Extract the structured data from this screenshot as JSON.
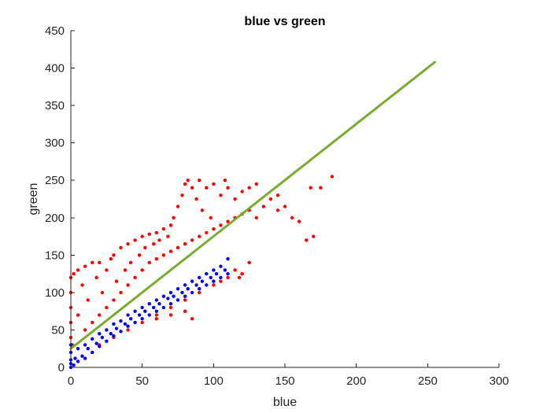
{
  "chart_data": {
    "type": "scatter",
    "title": "blue vs green",
    "xlabel": "blue",
    "ylabel": "green",
    "xlim": [
      0,
      300
    ],
    "ylim": [
      0,
      450
    ],
    "xticks": [
      0,
      50,
      100,
      150,
      200,
      250,
      300
    ],
    "yticks": [
      0,
      50,
      100,
      150,
      200,
      250,
      300,
      350,
      400,
      450
    ],
    "grid": false,
    "legend": "none",
    "series": [
      {
        "kind": "scatter",
        "color": "#ff0000",
        "points": [
          [
            0,
            40
          ],
          [
            0,
            60
          ],
          [
            0,
            80
          ],
          [
            0,
            100
          ],
          [
            0,
            120
          ],
          [
            1,
            30
          ],
          [
            2,
            125
          ],
          [
            5,
            130
          ],
          [
            5,
            70
          ],
          [
            8,
            110
          ],
          [
            10,
            50
          ],
          [
            10,
            135
          ],
          [
            12,
            90
          ],
          [
            15,
            60
          ],
          [
            15,
            140
          ],
          [
            18,
            120
          ],
          [
            20,
            70
          ],
          [
            20,
            140
          ],
          [
            22,
            100
          ],
          [
            25,
            80
          ],
          [
            25,
            130
          ],
          [
            28,
            145
          ],
          [
            30,
            90
          ],
          [
            30,
            150
          ],
          [
            32,
            115
          ],
          [
            35,
            100
          ],
          [
            35,
            160
          ],
          [
            38,
            130
          ],
          [
            40,
            110
          ],
          [
            40,
            165
          ],
          [
            42,
            140
          ],
          [
            45,
            120
          ],
          [
            45,
            170
          ],
          [
            48,
            150
          ],
          [
            50,
            130
          ],
          [
            50,
            175
          ],
          [
            52,
            160
          ],
          [
            55,
            140
          ],
          [
            55,
            178
          ],
          [
            58,
            165
          ],
          [
            60,
            145
          ],
          [
            60,
            180
          ],
          [
            62,
            170
          ],
          [
            65,
            150
          ],
          [
            65,
            185
          ],
          [
            68,
            175
          ],
          [
            70,
            155
          ],
          [
            70,
            190
          ],
          [
            72,
            200
          ],
          [
            75,
            160
          ],
          [
            75,
            215
          ],
          [
            78,
            230
          ],
          [
            80,
            165
          ],
          [
            80,
            245
          ],
          [
            82,
            250
          ],
          [
            85,
            170
          ],
          [
            85,
            240
          ],
          [
            88,
            225
          ],
          [
            90,
            175
          ],
          [
            90,
            250
          ],
          [
            92,
            210
          ],
          [
            95,
            180
          ],
          [
            95,
            240
          ],
          [
            98,
            200
          ],
          [
            100,
            185
          ],
          [
            100,
            245
          ],
          [
            105,
            190
          ],
          [
            105,
            230
          ],
          [
            108,
            250
          ],
          [
            110,
            195
          ],
          [
            110,
            240
          ],
          [
            115,
            200
          ],
          [
            115,
            225
          ],
          [
            120,
            205
          ],
          [
            120,
            235
          ],
          [
            125,
            210
          ],
          [
            125,
            240
          ],
          [
            130,
            200
          ],
          [
            130,
            245
          ],
          [
            135,
            215
          ],
          [
            140,
            225
          ],
          [
            145,
            210
          ],
          [
            145,
            230
          ],
          [
            150,
            215
          ],
          [
            155,
            200
          ],
          [
            160,
            195
          ],
          [
            165,
            170
          ],
          [
            170,
            175
          ],
          [
            168,
            240
          ],
          [
            175,
            240
          ],
          [
            183,
            255
          ],
          [
            20,
            30
          ],
          [
            30,
            40
          ],
          [
            40,
            50
          ],
          [
            50,
            60
          ],
          [
            60,
            70
          ],
          [
            70,
            80
          ],
          [
            80,
            90
          ],
          [
            90,
            100
          ],
          [
            100,
            110
          ],
          [
            105,
            115
          ],
          [
            110,
            120
          ],
          [
            115,
            130
          ],
          [
            118,
            120
          ],
          [
            120,
            125
          ],
          [
            125,
            140
          ],
          [
            60,
            65
          ],
          [
            70,
            70
          ],
          [
            80,
            75
          ],
          [
            85,
            65
          ]
        ]
      },
      {
        "kind": "scatter",
        "color": "#0000ff",
        "points": [
          [
            0,
            0
          ],
          [
            0,
            5
          ],
          [
            0,
            10
          ],
          [
            0,
            20
          ],
          [
            0,
            30
          ],
          [
            2,
            3
          ],
          [
            3,
            12
          ],
          [
            5,
            8
          ],
          [
            5,
            25
          ],
          [
            8,
            15
          ],
          [
            10,
            12
          ],
          [
            10,
            30
          ],
          [
            12,
            25
          ],
          [
            15,
            20
          ],
          [
            15,
            38
          ],
          [
            18,
            32
          ],
          [
            20,
            28
          ],
          [
            20,
            45
          ],
          [
            22,
            40
          ],
          [
            25,
            35
          ],
          [
            25,
            50
          ],
          [
            28,
            45
          ],
          [
            30,
            42
          ],
          [
            30,
            58
          ],
          [
            32,
            52
          ],
          [
            35,
            48
          ],
          [
            35,
            62
          ],
          [
            38,
            58
          ],
          [
            40,
            55
          ],
          [
            40,
            70
          ],
          [
            42,
            65
          ],
          [
            45,
            60
          ],
          [
            45,
            75
          ],
          [
            48,
            70
          ],
          [
            50,
            65
          ],
          [
            50,
            80
          ],
          [
            52,
            75
          ],
          [
            55,
            70
          ],
          [
            55,
            85
          ],
          [
            58,
            80
          ],
          [
            60,
            75
          ],
          [
            60,
            90
          ],
          [
            62,
            85
          ],
          [
            65,
            80
          ],
          [
            65,
            95
          ],
          [
            68,
            92
          ],
          [
            70,
            85
          ],
          [
            70,
            100
          ],
          [
            72,
            95
          ],
          [
            75,
            90
          ],
          [
            75,
            105
          ],
          [
            78,
            100
          ],
          [
            80,
            95
          ],
          [
            80,
            110
          ],
          [
            82,
            105
          ],
          [
            85,
            100
          ],
          [
            85,
            115
          ],
          [
            88,
            110
          ],
          [
            90,
            105
          ],
          [
            90,
            120
          ],
          [
            92,
            115
          ],
          [
            95,
            110
          ],
          [
            95,
            125
          ],
          [
            98,
            120
          ],
          [
            100,
            115
          ],
          [
            100,
            130
          ],
          [
            102,
            125
          ],
          [
            105,
            120
          ],
          [
            105,
            135
          ],
          [
            108,
            130
          ],
          [
            110,
            145
          ],
          [
            110,
            125
          ]
        ]
      },
      {
        "kind": "line",
        "color": "#77ac30",
        "points": [
          [
            0,
            25
          ],
          [
            255,
            408
          ]
        ]
      }
    ]
  }
}
